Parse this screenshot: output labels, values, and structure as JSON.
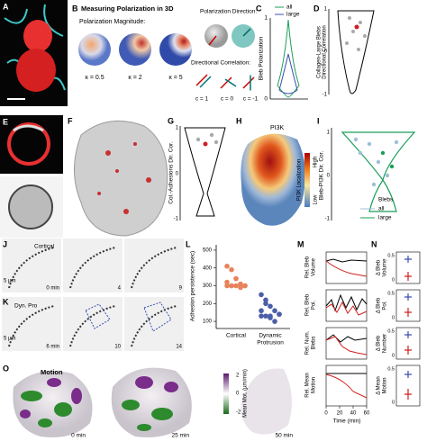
{
  "panels": {
    "A": {
      "label": "A"
    },
    "B": {
      "label": "B",
      "title": "Measuring Polarization in 3D",
      "magnitude": "Polarization Magnitude:",
      "kappas": [
        "κ = 0.5",
        "κ = 2",
        "κ = 5"
      ],
      "direction": "Polarization Direction:",
      "correlation": "Directional Correlation:",
      "cs": [
        "c = 1",
        "c = 0",
        "c = -1"
      ]
    },
    "C": {
      "label": "C",
      "ylabel": "Bleb Polarization",
      "yticks": [
        "1",
        "0"
      ],
      "legend": [
        "all",
        "large"
      ]
    },
    "D": {
      "label": "D",
      "ylabel": [
        "Collagen-Large Blebs",
        "Directional Correlation"
      ],
      "yticks": [
        "1",
        "0",
        "-1"
      ]
    },
    "E": {
      "label": "E"
    },
    "F": {
      "label": "F"
    },
    "G": {
      "label": "G",
      "ylabel": "Col.-Adhesions Dir. Cor.",
      "yticks": [
        "1",
        "0",
        "-1"
      ]
    },
    "H": {
      "label": "H",
      "title": "PI3K",
      "colorbar": "PI3K Localization",
      "high": "High",
      "low": "Low"
    },
    "I": {
      "label": "I",
      "ylabel": "Bleb-PI3K Dir. Cor.",
      "yticks": [
        "1",
        "0",
        "-1"
      ],
      "legend_title": "Blebs",
      "legend": [
        "all",
        "large"
      ]
    },
    "J": {
      "label": "J",
      "title": "Cortical",
      "scale": "5 µm",
      "times": [
        "0 min",
        "4",
        "9"
      ]
    },
    "K": {
      "label": "K",
      "title": "Dyn. Pro",
      "scale": "5 µm",
      "times": [
        "6 min",
        "10",
        "14"
      ]
    },
    "L": {
      "label": "L",
      "ylabel": "Adhesion persistence (sec)",
      "ylim": [
        60,
        530
      ],
      "yticks": [
        500,
        400,
        300,
        200,
        100
      ],
      "x_labels": [
        "Cortical",
        "Dynamic",
        "Protrusion"
      ],
      "series": [
        {
          "color": "#e8825a",
          "values": [
            410,
            390,
            340,
            310,
            300,
            300,
            300,
            300,
            290,
            300,
            320,
            300
          ]
        },
        {
          "color": "#4b5ea8",
          "values": [
            250,
            220,
            185,
            160,
            140,
            130,
            130,
            120,
            100,
            140,
            160,
            200,
            130
          ]
        }
      ]
    },
    "M": {
      "label": "M",
      "ylabels": [
        [
          "Rel. Bleb",
          "Volume"
        ],
        [
          "Rel. Bleb",
          "Pol."
        ],
        [
          "Rel. Num.",
          "Blebs"
        ],
        [
          "Rel. Mean",
          "Motion"
        ]
      ],
      "xlim": [
        0,
        60
      ],
      "xticks": [
        0,
        20,
        40,
        60
      ],
      "xlabel": "Time (min)"
    },
    "N": {
      "label": "N",
      "ylabels": [
        [
          "Δ Bleb",
          "Volume"
        ],
        [
          "Δ Bleb",
          "Pol."
        ],
        [
          "Δ Bleb",
          "Number"
        ],
        [
          "Δ Mean",
          "Motion"
        ]
      ],
      "yticks": [
        "0.5",
        "0"
      ]
    },
    "O": {
      "label": "O",
      "title": "Motion",
      "colorbar": "Mean Mot. (µm/min)",
      "cticks": [
        "2",
        "0",
        "-2"
      ],
      "times": [
        "0 min",
        "25 min",
        "50 min"
      ]
    }
  }
}
